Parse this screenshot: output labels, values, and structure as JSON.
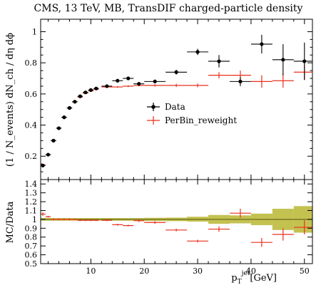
{
  "colors": {
    "data": "#000000",
    "mc": "#e8301c",
    "band": "#b9b733",
    "ratio_line": "#6b6b18",
    "axis": "#000000"
  },
  "chart_data": [
    {
      "type": "scatter",
      "title": "CMS, 13 TeV, MB, TransDIF charged-particle density",
      "xlabel": "p_T^jet [GeV]",
      "xlabel_main": "p",
      "xlabel_sub": "T",
      "xlabel_sup": "jet",
      "xlabel_unit": "[GeV]",
      "ylabel": "(1/N_events) dN_ch / dη dϕ",
      "ylabel_text": "(1 / N_events) dN_ch / dη dϕ",
      "xlim": [
        0.6,
        51.5
      ],
      "ylim": [
        0.05,
        1.08
      ],
      "xticks": [
        "10",
        "20",
        "30",
        "40",
        "50"
      ],
      "yticks": [
        "0.2",
        "0.4",
        "0.6",
        "0.8",
        "1"
      ],
      "legend": {
        "position": "center-right",
        "entries": [
          "Data",
          "PerBin_reweight"
        ],
        "entries_display": [
          "Data",
          "PerBin_reweight"
        ]
      },
      "series": [
        {
          "name": "Data",
          "style": "points",
          "points": [
            {
              "x": 1.0,
              "y": 0.14,
              "xerr": 0.5,
              "yerr": 0.005
            },
            {
              "x": 2.0,
              "y": 0.21,
              "xerr": 0.5,
              "yerr": 0.005
            },
            {
              "x": 3.0,
              "y": 0.3,
              "xerr": 0.5,
              "yerr": 0.005
            },
            {
              "x": 4.0,
              "y": 0.38,
              "xerr": 0.5,
              "yerr": 0.005
            },
            {
              "x": 5.0,
              "y": 0.45,
              "xerr": 0.5,
              "yerr": 0.005
            },
            {
              "x": 6.0,
              "y": 0.51,
              "xerr": 0.5,
              "yerr": 0.005
            },
            {
              "x": 7.0,
              "y": 0.55,
              "xerr": 0.5,
              "yerr": 0.005
            },
            {
              "x": 8.0,
              "y": 0.585,
              "xerr": 0.5,
              "yerr": 0.005
            },
            {
              "x": 9.0,
              "y": 0.61,
              "xerr": 0.5,
              "yerr": 0.005
            },
            {
              "x": 10.0,
              "y": 0.625,
              "xerr": 0.5,
              "yerr": 0.005
            },
            {
              "x": 11.0,
              "y": 0.635,
              "xerr": 0.5,
              "yerr": 0.005
            },
            {
              "x": 13.0,
              "y": 0.65,
              "xerr": 1.0,
              "yerr": 0.006
            },
            {
              "x": 15.0,
              "y": 0.685,
              "xerr": 1.0,
              "yerr": 0.007
            },
            {
              "x": 17.0,
              "y": 0.7,
              "xerr": 1.0,
              "yerr": 0.008
            },
            {
              "x": 19.0,
              "y": 0.665,
              "xerr": 1.0,
              "yerr": 0.01
            },
            {
              "x": 22.0,
              "y": 0.68,
              "xerr": 2.0,
              "yerr": 0.012
            },
            {
              "x": 26.0,
              "y": 0.74,
              "xerr": 2.0,
              "yerr": 0.015
            },
            {
              "x": 30.0,
              "y": 0.87,
              "xerr": 2.0,
              "yerr": 0.02
            },
            {
              "x": 34.0,
              "y": 0.81,
              "xerr": 2.0,
              "yerr": 0.04
            },
            {
              "x": 38.0,
              "y": 0.68,
              "xerr": 2.0,
              "yerr": 0.03
            },
            {
              "x": 42.0,
              "y": 0.92,
              "xerr": 2.0,
              "yerr": 0.06
            },
            {
              "x": 46.0,
              "y": 0.82,
              "xerr": 2.0,
              "yerr": 0.1
            },
            {
              "x": 50.0,
              "y": 0.81,
              "xerr": 2.0,
              "yerr": 0.12
            }
          ]
        },
        {
          "name": "PerBin_reweight",
          "style": "crosses",
          "points": [
            {
              "x": 1.0,
              "y": 0.145,
              "xerr": 0.5,
              "yerr": 0.004
            },
            {
              "x": 2.0,
              "y": 0.21,
              "xerr": 0.5,
              "yerr": 0.004
            },
            {
              "x": 3.0,
              "y": 0.3,
              "xerr": 0.5,
              "yerr": 0.004
            },
            {
              "x": 4.0,
              "y": 0.38,
              "xerr": 0.5,
              "yerr": 0.004
            },
            {
              "x": 5.0,
              "y": 0.45,
              "xerr": 0.5,
              "yerr": 0.004
            },
            {
              "x": 6.0,
              "y": 0.51,
              "xerr": 0.5,
              "yerr": 0.004
            },
            {
              "x": 7.0,
              "y": 0.55,
              "xerr": 0.5,
              "yerr": 0.004
            },
            {
              "x": 8.0,
              "y": 0.58,
              "xerr": 0.5,
              "yerr": 0.004
            },
            {
              "x": 9.0,
              "y": 0.605,
              "xerr": 0.5,
              "yerr": 0.004
            },
            {
              "x": 10.0,
              "y": 0.62,
              "xerr": 0.5,
              "yerr": 0.004
            },
            {
              "x": 11.0,
              "y": 0.63,
              "xerr": 0.5,
              "yerr": 0.004
            },
            {
              "x": 13.0,
              "y": 0.645,
              "xerr": 1.0,
              "yerr": 0.005
            },
            {
              "x": 15.0,
              "y": 0.645,
              "xerr": 1.0,
              "yerr": 0.005
            },
            {
              "x": 17.0,
              "y": 0.65,
              "xerr": 1.0,
              "yerr": 0.006
            },
            {
              "x": 19.0,
              "y": 0.655,
              "xerr": 1.0,
              "yerr": 0.006
            },
            {
              "x": 22.0,
              "y": 0.655,
              "xerr": 2.0,
              "yerr": 0.008
            },
            {
              "x": 26.0,
              "y": 0.655,
              "xerr": 2.0,
              "yerr": 0.01
            },
            {
              "x": 30.0,
              "y": 0.655,
              "xerr": 2.0,
              "yerr": 0.012
            },
            {
              "x": 34.0,
              "y": 0.72,
              "xerr": 2.0,
              "yerr": 0.02
            },
            {
              "x": 38.0,
              "y": 0.72,
              "xerr": 2.0,
              "yerr": 0.03
            },
            {
              "x": 42.0,
              "y": 0.68,
              "xerr": 2.0,
              "yerr": 0.04
            },
            {
              "x": 46.0,
              "y": 0.685,
              "xerr": 2.0,
              "yerr": 0.045
            },
            {
              "x": 50.0,
              "y": 0.74,
              "xerr": 2.0,
              "yerr": 0.05
            }
          ]
        }
      ]
    },
    {
      "type": "scatter",
      "title": "",
      "xlabel": "p_T^jet [GeV]",
      "ylabel": "MC/Data",
      "xlim": [
        0.6,
        51.5
      ],
      "ylim": [
        0.5,
        1.45
      ],
      "xticks": [
        "10",
        "20",
        "30",
        "40",
        "50"
      ],
      "yticks": [
        "0.5",
        "0.6",
        "0.7",
        "0.8",
        "0.9",
        "1",
        "1.1",
        "1.2",
        "1.3",
        "1.4"
      ],
      "reference_line": 1.0,
      "band": [
        {
          "x0": 0.5,
          "x1": 12.0,
          "lo": 0.985,
          "hi": 1.015
        },
        {
          "x0": 12.0,
          "x1": 20.0,
          "lo": 0.985,
          "hi": 1.015
        },
        {
          "x0": 20.0,
          "x1": 24.0,
          "lo": 0.982,
          "hi": 1.018
        },
        {
          "x0": 24.0,
          "x1": 28.0,
          "lo": 0.98,
          "hi": 1.02
        },
        {
          "x0": 28.0,
          "x1": 32.0,
          "lo": 0.975,
          "hi": 1.03
        },
        {
          "x0": 32.0,
          "x1": 36.0,
          "lo": 0.95,
          "hi": 1.05
        },
        {
          "x0": 36.0,
          "x1": 40.0,
          "lo": 0.955,
          "hi": 1.045
        },
        {
          "x0": 40.0,
          "x1": 44.0,
          "lo": 0.935,
          "hi": 1.065
        },
        {
          "x0": 44.0,
          "x1": 48.0,
          "lo": 0.88,
          "hi": 1.12
        },
        {
          "x0": 48.0,
          "x1": 52.0,
          "lo": 0.85,
          "hi": 1.15
        }
      ],
      "series": [
        {
          "name": "PerBin_reweight",
          "style": "crosses",
          "points": [
            {
              "x": 1.0,
              "y": 1.06,
              "xerr": 0.5,
              "yerr": 0.02
            },
            {
              "x": 2.0,
              "y": 1.03,
              "xerr": 0.5,
              "yerr": 0.01
            },
            {
              "x": 3.0,
              "y": 1.0,
              "xerr": 0.5,
              "yerr": 0.01
            },
            {
              "x": 4.0,
              "y": 1.0,
              "xerr": 0.5,
              "yerr": 0.01
            },
            {
              "x": 5.0,
              "y": 1.0,
              "xerr": 0.5,
              "yerr": 0.01
            },
            {
              "x": 6.0,
              "y": 1.0,
              "xerr": 0.5,
              "yerr": 0.01
            },
            {
              "x": 7.0,
              "y": 1.0,
              "xerr": 0.5,
              "yerr": 0.01
            },
            {
              "x": 8.0,
              "y": 0.99,
              "xerr": 0.5,
              "yerr": 0.01
            },
            {
              "x": 9.0,
              "y": 0.99,
              "xerr": 0.5,
              "yerr": 0.01
            },
            {
              "x": 10.0,
              "y": 0.99,
              "xerr": 0.5,
              "yerr": 0.01
            },
            {
              "x": 11.0,
              "y": 0.99,
              "xerr": 0.5,
              "yerr": 0.01
            },
            {
              "x": 13.0,
              "y": 0.99,
              "xerr": 1.0,
              "yerr": 0.01
            },
            {
              "x": 15.0,
              "y": 0.94,
              "xerr": 1.0,
              "yerr": 0.01
            },
            {
              "x": 17.0,
              "y": 0.93,
              "xerr": 1.0,
              "yerr": 0.01
            },
            {
              "x": 19.0,
              "y": 0.985,
              "xerr": 1.0,
              "yerr": 0.015
            },
            {
              "x": 22.0,
              "y": 0.965,
              "xerr": 2.0,
              "yerr": 0.015
            },
            {
              "x": 26.0,
              "y": 0.88,
              "xerr": 2.0,
              "yerr": 0.015
            },
            {
              "x": 30.0,
              "y": 0.755,
              "xerr": 2.0,
              "yerr": 0.015
            },
            {
              "x": 34.0,
              "y": 0.89,
              "xerr": 2.0,
              "yerr": 0.03
            },
            {
              "x": 38.0,
              "y": 1.07,
              "xerr": 2.0,
              "yerr": 0.05
            },
            {
              "x": 42.0,
              "y": 0.74,
              "xerr": 2.0,
              "yerr": 0.05
            },
            {
              "x": 46.0,
              "y": 0.83,
              "xerr": 2.0,
              "yerr": 0.07
            },
            {
              "x": 50.0,
              "y": 0.91,
              "xerr": 2.0,
              "yerr": 0.08
            }
          ]
        }
      ]
    }
  ]
}
